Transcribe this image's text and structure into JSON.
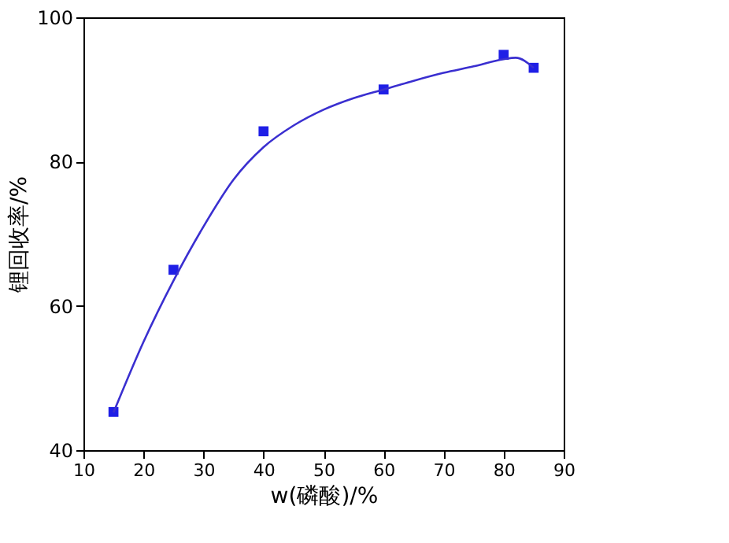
{
  "chart_data": {
    "type": "scatter",
    "xlabel": "w(磷酸)/%",
    "ylabel": "锂回收率/%",
    "xlim": [
      10,
      90
    ],
    "xticks": [
      10,
      20,
      30,
      40,
      50,
      60,
      70,
      80,
      90
    ],
    "ylim": [
      40,
      100
    ],
    "yticks": [
      40,
      60,
      80,
      100
    ],
    "grid": false,
    "series": [
      {
        "marker": "square",
        "color": "#1f1fe6",
        "x": [
          15,
          25,
          40,
          60,
          80,
          85
        ],
        "values": [
          45.3,
          65,
          84.2,
          90,
          94.8,
          93
        ]
      },
      {
        "type": "line",
        "marker": "none",
        "line_style": "solid",
        "color": "#3a2fd0",
        "x": [
          15,
          20,
          25,
          30,
          35,
          40,
          45,
          50,
          55,
          60,
          65,
          70,
          75,
          80,
          82,
          85
        ],
        "values": [
          45.2,
          55,
          63.5,
          71,
          77.5,
          82,
          85,
          87.2,
          88.8,
          90,
          91.2,
          92.3,
          93.2,
          94.2,
          94.4,
          93
        ]
      }
    ]
  }
}
